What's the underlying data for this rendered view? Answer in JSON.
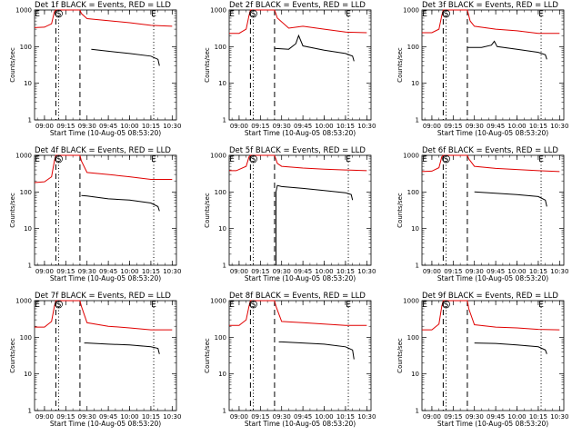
{
  "figure": {
    "xlabel": "Start Time (10-Aug-05 08:53:20)",
    "ylabel": "Counts/sec",
    "x_ticks": [
      "09:00",
      "09:15",
      "09:30",
      "09:45",
      "10:00",
      "10:15",
      "10:30"
    ],
    "y_ticks": [
      "1",
      "10",
      "100",
      "1000"
    ]
  },
  "chart_data": [
    {
      "type": "line",
      "title": "Det 1f BLACK = Events, RED = LLD",
      "xlabel": "Start Time (10-Aug-05 08:53:20)",
      "ylabel": "Counts/sec",
      "y_scale": "log",
      "ylim": [
        1,
        1000
      ],
      "xlim": [
        "08:53",
        "10:33"
      ],
      "grid": false,
      "x_ticks": [
        "09:00",
        "09:15",
        "09:30",
        "09:45",
        "10:00",
        "10:15",
        "10:30"
      ],
      "y_ticks": [
        "1",
        "10",
        "100",
        "1000"
      ],
      "vlines_dashed": [
        "09:08",
        "09:25"
      ],
      "vlines_dotted": [
        "09:10",
        "10:17"
      ],
      "markers": [
        {
          "label": "E",
          "x": "08:55"
        },
        {
          "label": "S",
          "x": "09:10"
        },
        {
          "label": "E",
          "x": "10:17"
        }
      ],
      "series": [
        {
          "color": "#e00000",
          "x": [
            "08:53",
            "09:00",
            "09:05",
            "09:07",
            "09:08",
            "09:25",
            "09:26",
            "09:30",
            "09:45",
            "10:00",
            "10:15",
            "10:30"
          ],
          "y": [
            330,
            340,
            420,
            900,
            1000,
            1000,
            800,
            580,
            510,
            450,
            380,
            360
          ]
        },
        {
          "color": "#000000",
          "x": [
            "09:33",
            "09:45",
            "10:00",
            "10:15",
            "10:20",
            "10:21"
          ],
          "y": [
            85,
            75,
            65,
            55,
            45,
            30
          ]
        }
      ]
    },
    {
      "type": "line",
      "title": "Det 2f BLACK = Events, RED = LLD",
      "xlabel": "Start Time (10-Aug-05 08:53:20)",
      "ylabel": "Counts/sec",
      "y_scale": "log",
      "ylim": [
        1,
        1000
      ],
      "xlim": [
        "08:53",
        "10:33"
      ],
      "grid": false,
      "x_ticks": [
        "09:00",
        "09:15",
        "09:30",
        "09:45",
        "10:00",
        "10:15",
        "10:30"
      ],
      "y_ticks": [
        "1",
        "10",
        "100",
        "1000"
      ],
      "vlines_dashed": [
        "09:08",
        "09:25"
      ],
      "vlines_dotted": [
        "09:10",
        "10:17"
      ],
      "markers": [
        {
          "label": "E",
          "x": "08:55"
        },
        {
          "label": "S",
          "x": "09:10"
        },
        {
          "label": "E",
          "x": "10:17"
        }
      ],
      "series": [
        {
          "color": "#e00000",
          "x": [
            "08:53",
            "09:00",
            "09:05",
            "09:07",
            "09:08",
            "09:25",
            "09:27",
            "09:35",
            "09:45",
            "10:00",
            "10:15",
            "10:30"
          ],
          "y": [
            230,
            230,
            300,
            700,
            1000,
            1000,
            600,
            320,
            360,
            300,
            250,
            240
          ]
        },
        {
          "color": "#000000",
          "x": [
            "09:25",
            "09:35",
            "09:40",
            "09:42",
            "09:45",
            "10:00",
            "10:15",
            "10:20",
            "10:21"
          ],
          "y": [
            90,
            85,
            120,
            200,
            105,
            80,
            65,
            55,
            40
          ]
        }
      ]
    },
    {
      "type": "line",
      "title": "Det 3f BLACK = Events, RED = LLD",
      "xlabel": "Start Time (10-Aug-05 08:53:20)",
      "ylabel": "Counts/sec",
      "y_scale": "log",
      "ylim": [
        1,
        1000
      ],
      "xlim": [
        "08:53",
        "10:33"
      ],
      "grid": false,
      "x_ticks": [
        "09:00",
        "09:15",
        "09:30",
        "09:45",
        "10:00",
        "10:15",
        "10:30"
      ],
      "y_ticks": [
        "1",
        "10",
        "100",
        "1000"
      ],
      "vlines_dashed": [
        "09:08",
        "09:25"
      ],
      "vlines_dotted": [
        "09:10",
        "10:17"
      ],
      "markers": [
        {
          "label": "E",
          "x": "08:55"
        },
        {
          "label": "S",
          "x": "09:10"
        },
        {
          "label": "E",
          "x": "10:17"
        }
      ],
      "series": [
        {
          "color": "#e00000",
          "x": [
            "08:53",
            "09:00",
            "09:05",
            "09:07",
            "09:08",
            "09:25",
            "09:27",
            "09:30",
            "09:45",
            "10:00",
            "10:15",
            "10:30"
          ],
          "y": [
            240,
            240,
            300,
            700,
            1000,
            1000,
            500,
            360,
            300,
            270,
            230,
            230
          ]
        },
        {
          "color": "#000000",
          "x": [
            "09:25",
            "09:35",
            "09:42",
            "09:44",
            "09:46",
            "10:00",
            "10:15",
            "10:20",
            "10:21"
          ],
          "y": [
            95,
            95,
            110,
            140,
            100,
            85,
            70,
            60,
            45
          ]
        }
      ]
    },
    {
      "type": "line",
      "title": "Det 4f BLACK = Events, RED = LLD",
      "xlabel": "Start Time (10-Aug-05 08:53:20)",
      "ylabel": "Counts/sec",
      "y_scale": "log",
      "ylim": [
        1,
        1000
      ],
      "xlim": [
        "08:53",
        "10:33"
      ],
      "grid": false,
      "x_ticks": [
        "09:00",
        "09:15",
        "09:30",
        "09:45",
        "10:00",
        "10:15",
        "10:30"
      ],
      "y_ticks": [
        "1",
        "10",
        "100",
        "1000"
      ],
      "vlines_dashed": [
        "09:08",
        "09:25"
      ],
      "vlines_dotted": [
        "09:10",
        "10:17"
      ],
      "markers": [
        {
          "label": "E",
          "x": "08:55"
        },
        {
          "label": "S",
          "x": "09:10"
        },
        {
          "label": "E",
          "x": "10:17"
        }
      ],
      "series": [
        {
          "color": "#e00000",
          "x": [
            "08:53",
            "09:00",
            "09:05",
            "09:07",
            "09:08",
            "09:25",
            "09:26",
            "09:30",
            "09:45",
            "10:00",
            "10:15",
            "10:30"
          ],
          "y": [
            180,
            190,
            260,
            700,
            1000,
            1000,
            700,
            340,
            300,
            260,
            220,
            220
          ]
        },
        {
          "color": "#000000",
          "x": [
            "09:26",
            "09:30",
            "09:45",
            "10:00",
            "10:15",
            "10:20",
            "10:21"
          ],
          "y": [
            80,
            78,
            65,
            60,
            50,
            40,
            30
          ]
        }
      ]
    },
    {
      "type": "line",
      "title": "Det 5f BLACK = Events, RED = LLD",
      "xlabel": "Start Time (10-Aug-05 08:53:20)",
      "ylabel": "Counts/sec",
      "y_scale": "log",
      "ylim": [
        1,
        1000
      ],
      "xlim": [
        "08:53",
        "10:33"
      ],
      "grid": false,
      "x_ticks": [
        "09:00",
        "09:15",
        "09:30",
        "09:45",
        "10:00",
        "10:15",
        "10:30"
      ],
      "y_ticks": [
        "1",
        "10",
        "100",
        "1000"
      ],
      "vlines_dashed": [
        "09:08",
        "09:25"
      ],
      "vlines_dotted": [
        "09:10",
        "10:17"
      ],
      "markers": [
        {
          "label": "E",
          "x": "08:55"
        },
        {
          "label": "S",
          "x": "09:10"
        },
        {
          "label": "E",
          "x": "10:17"
        }
      ],
      "series": [
        {
          "color": "#e00000",
          "x": [
            "08:53",
            "08:58",
            "09:05",
            "09:07",
            "09:08",
            "09:25",
            "09:27",
            "09:30",
            "09:45",
            "10:00",
            "10:15",
            "10:30"
          ],
          "y": [
            380,
            380,
            500,
            900,
            1000,
            1000,
            600,
            500,
            450,
            420,
            400,
            380
          ]
        },
        {
          "color": "#000000",
          "x": [
            "09:26",
            "09:26",
            "09:27",
            "09:30",
            "09:45",
            "10:00",
            "10:15",
            "10:19",
            "10:20"
          ],
          "y": [
            1,
            100,
            150,
            140,
            125,
            110,
            95,
            85,
            60
          ]
        }
      ]
    },
    {
      "type": "line",
      "title": "Det 6f BLACK = Events, RED = LLD",
      "xlabel": "Start Time (10-Aug-05 08:53:20)",
      "ylabel": "Counts/sec",
      "y_scale": "log",
      "ylim": [
        1,
        1000
      ],
      "xlim": [
        "08:53",
        "10:33"
      ],
      "grid": false,
      "x_ticks": [
        "09:00",
        "09:15",
        "09:30",
        "09:45",
        "10:00",
        "10:15",
        "10:30"
      ],
      "y_ticks": [
        "1",
        "10",
        "100",
        "1000"
      ],
      "vlines_dashed": [
        "09:08",
        "09:25"
      ],
      "vlines_dotted": [
        "09:10",
        "10:17"
      ],
      "markers": [
        {
          "label": "E",
          "x": "08:55"
        },
        {
          "label": "S",
          "x": "09:10"
        },
        {
          "label": "E",
          "x": "10:17"
        }
      ],
      "series": [
        {
          "color": "#e00000",
          "x": [
            "08:53",
            "09:00",
            "09:05",
            "09:07",
            "09:08",
            "09:25",
            "09:26",
            "09:30",
            "09:45",
            "10:00",
            "10:15",
            "10:30"
          ],
          "y": [
            360,
            370,
            460,
            900,
            1000,
            1000,
            800,
            500,
            440,
            410,
            380,
            360
          ]
        },
        {
          "color": "#000000",
          "x": [
            "09:30",
            "09:45",
            "10:00",
            "10:15",
            "10:20",
            "10:21"
          ],
          "y": [
            100,
            92,
            85,
            75,
            60,
            40
          ]
        }
      ]
    },
    {
      "type": "line",
      "title": "Det 7f BLACK = Events, RED = LLD",
      "xlabel": "Start Time (10-Aug-05 08:53:20)",
      "ylabel": "Counts/sec",
      "y_scale": "log",
      "ylim": [
        1,
        1000
      ],
      "xlim": [
        "08:53",
        "10:33"
      ],
      "grid": false,
      "x_ticks": [
        "09:00",
        "09:15",
        "09:30",
        "09:45",
        "10:00",
        "10:15",
        "10:30"
      ],
      "y_ticks": [
        "1",
        "10",
        "100",
        "1000"
      ],
      "vlines_dashed": [
        "09:08",
        "09:25"
      ],
      "vlines_dotted": [
        "09:10",
        "10:17"
      ],
      "markers": [
        {
          "label": "E",
          "x": "08:55"
        },
        {
          "label": "S",
          "x": "09:10"
        },
        {
          "label": "E",
          "x": "10:17"
        }
      ],
      "series": [
        {
          "color": "#e00000",
          "x": [
            "08:53",
            "09:00",
            "09:05",
            "09:07",
            "09:08",
            "09:25",
            "09:26",
            "09:30",
            "09:45",
            "10:00",
            "10:15",
            "10:30"
          ],
          "y": [
            190,
            190,
            270,
            700,
            1000,
            1000,
            700,
            250,
            200,
            180,
            160,
            160
          ]
        },
        {
          "color": "#000000",
          "x": [
            "09:28",
            "09:30",
            "09:45",
            "10:00",
            "10:15",
            "10:20",
            "10:21"
          ],
          "y": [
            70,
            70,
            65,
            62,
            55,
            50,
            35
          ]
        }
      ]
    },
    {
      "type": "line",
      "title": "Det 8f BLACK = Events, RED = LLD",
      "xlabel": "Start Time (10-Aug-05 08:53:20)",
      "ylabel": "Counts/sec",
      "y_scale": "log",
      "ylim": [
        1,
        1000
      ],
      "xlim": [
        "08:53",
        "10:33"
      ],
      "grid": false,
      "x_ticks": [
        "09:00",
        "09:15",
        "09:30",
        "09:45",
        "10:00",
        "10:15",
        "10:30"
      ],
      "y_ticks": [
        "1",
        "10",
        "100",
        "1000"
      ],
      "vlines_dashed": [
        "09:08",
        "09:25"
      ],
      "vlines_dotted": [
        "09:10",
        "10:17"
      ],
      "markers": [
        {
          "label": "E",
          "x": "08:55"
        },
        {
          "label": "S",
          "x": "09:10"
        },
        {
          "label": "E",
          "x": "10:17"
        }
      ],
      "series": [
        {
          "color": "#e00000",
          "x": [
            "08:53",
            "09:00",
            "09:05",
            "09:07",
            "09:08",
            "09:25",
            "09:26",
            "09:30",
            "09:45",
            "10:00",
            "10:15",
            "10:30"
          ],
          "y": [
            210,
            210,
            300,
            700,
            1000,
            1000,
            700,
            270,
            250,
            230,
            210,
            210
          ]
        },
        {
          "color": "#000000",
          "x": [
            "09:28",
            "09:30",
            "09:45",
            "10:00",
            "10:15",
            "10:20",
            "10:21"
          ],
          "y": [
            75,
            75,
            70,
            65,
            55,
            45,
            25
          ]
        }
      ]
    },
    {
      "type": "line",
      "title": "Det 9f BLACK = Events, RED = LLD",
      "xlabel": "Start Time (10-Aug-05 08:53:20)",
      "ylabel": "Counts/sec",
      "y_scale": "log",
      "ylim": [
        1,
        1000
      ],
      "xlim": [
        "08:53",
        "10:33"
      ],
      "grid": false,
      "x_ticks": [
        "09:00",
        "09:15",
        "09:30",
        "09:45",
        "10:00",
        "10:15",
        "10:30"
      ],
      "y_ticks": [
        "1",
        "10",
        "100",
        "1000"
      ],
      "vlines_dashed": [
        "09:08",
        "09:25"
      ],
      "vlines_dotted": [
        "09:10",
        "10:17"
      ],
      "markers": [
        {
          "label": "E",
          "x": "08:55"
        },
        {
          "label": "S",
          "x": "09:10"
        },
        {
          "label": "E",
          "x": "10:17"
        }
      ],
      "series": [
        {
          "color": "#e00000",
          "x": [
            "08:53",
            "09:00",
            "09:05",
            "09:07",
            "09:08",
            "09:25",
            "09:26",
            "09:30",
            "09:45",
            "10:00",
            "10:15",
            "10:30"
          ],
          "y": [
            160,
            160,
            230,
            700,
            1000,
            1000,
            600,
            220,
            190,
            180,
            165,
            160
          ]
        },
        {
          "color": "#000000",
          "x": [
            "09:30",
            "09:45",
            "10:00",
            "10:15",
            "10:20",
            "10:21"
          ],
          "y": [
            70,
            68,
            62,
            55,
            45,
            35
          ]
        }
      ]
    }
  ]
}
